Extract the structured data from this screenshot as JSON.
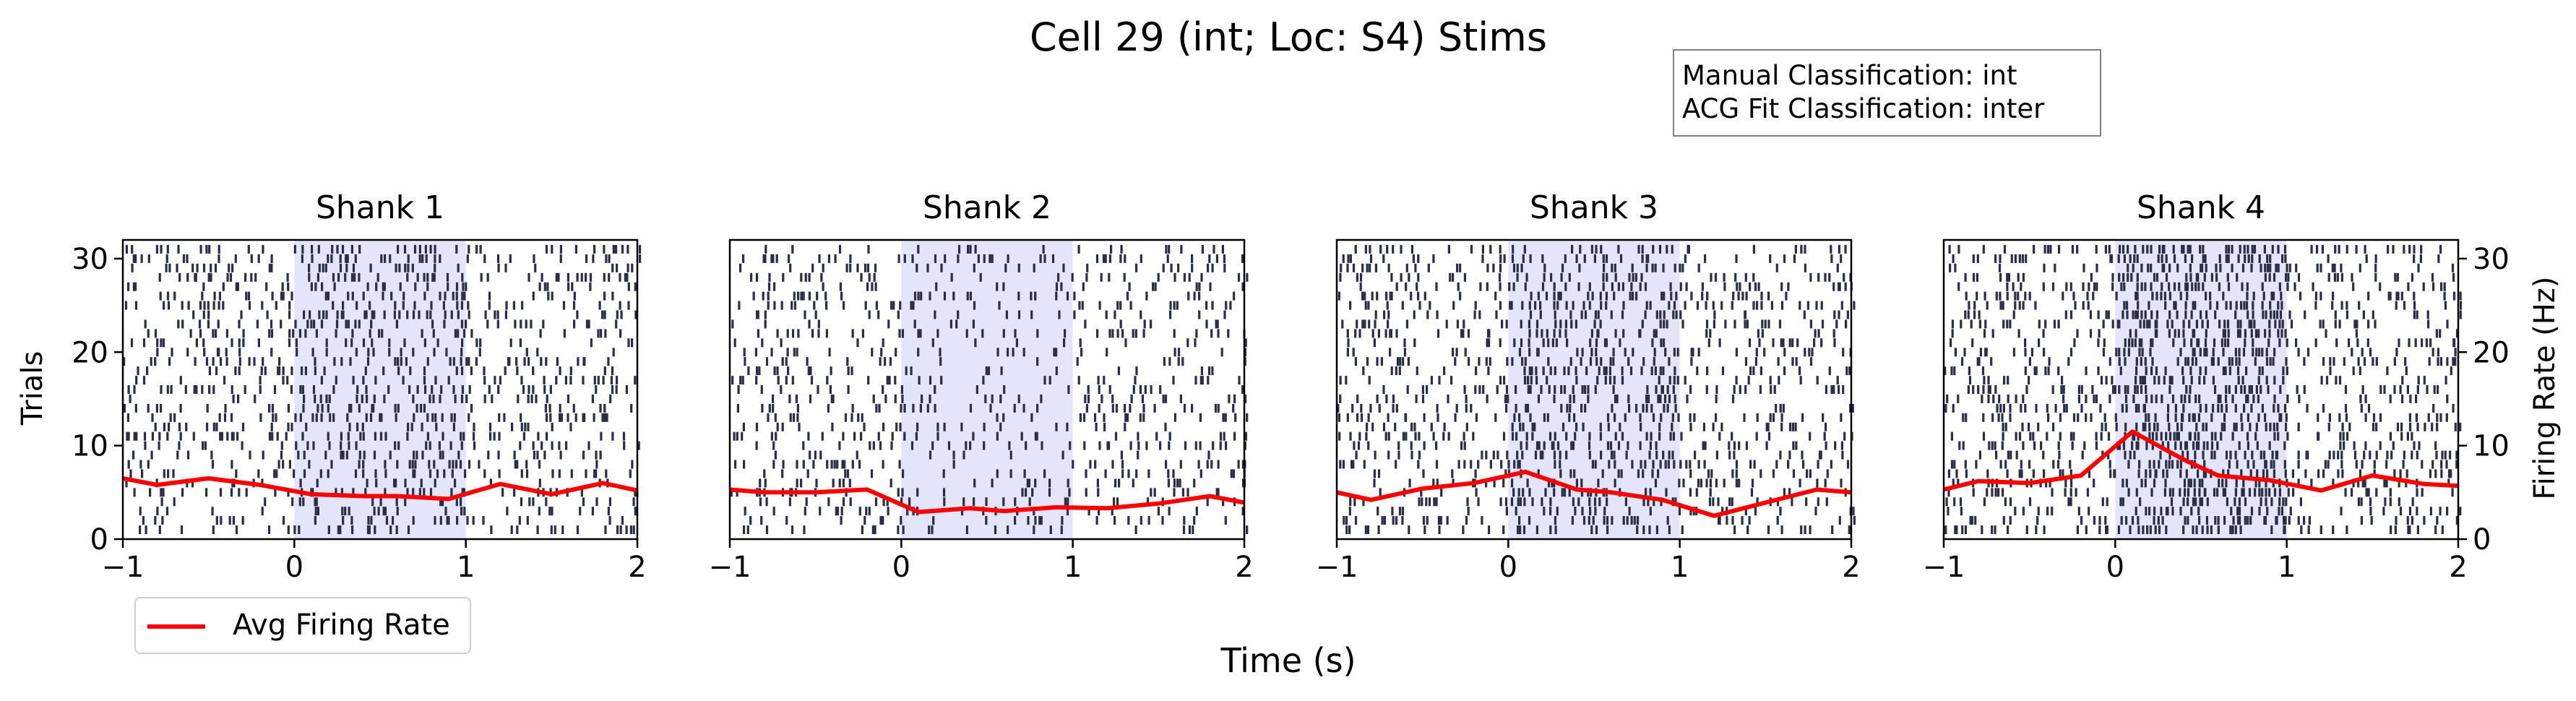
{
  "figure_title": "Cell 29 (int; Loc: S4) Stims",
  "classification_box": {
    "line1": "Manual Classification: int",
    "line2": "ACG Fit Classification: inter"
  },
  "legend": {
    "label": "Avg Firing Rate",
    "color": "#ff0000"
  },
  "colors": {
    "raster": "#2a2f45",
    "stim_shade": "#e4e4fb",
    "firing_rate": "#ff0000"
  },
  "chart_data": {
    "type": "line",
    "xlabel": "Time (s)",
    "left_ylabel": "Trials",
    "right_ylabel": "Firing Rate (Hz)",
    "xlim": [
      -1,
      2
    ],
    "xticks": [
      "−1",
      "0",
      "1",
      "2"
    ],
    "left_ylim": [
      0,
      32
    ],
    "left_yticks": [
      "0",
      "10",
      "20",
      "30"
    ],
    "right_ylim": [
      0,
      32
    ],
    "right_yticks": [
      "0",
      "10",
      "20",
      "30"
    ],
    "stim_window": [
      0,
      1
    ],
    "n_trials": 31,
    "x": [
      -1.0,
      -0.8,
      -0.5,
      -0.2,
      0.1,
      0.4,
      0.6,
      0.9,
      1.2,
      1.5,
      1.8,
      2.0
    ],
    "panels": [
      {
        "title": "Shank 1",
        "firing_rate": [
          6.5,
          5.8,
          6.5,
          5.8,
          4.8,
          4.6,
          4.6,
          4.3,
          5.9,
          4.8,
          6.0,
          5.2
        ],
        "raster_density": [
          0.22,
          0.3
        ]
      },
      {
        "title": "Shank 2",
        "firing_rate": [
          5.3,
          5.0,
          5.0,
          5.3,
          2.9,
          3.3,
          3.0,
          3.4,
          3.3,
          3.8,
          4.6,
          3.9
        ],
        "raster_density": [
          0.2,
          0.14
        ]
      },
      {
        "title": "Shank 3",
        "firing_rate": [
          5.0,
          4.2,
          5.4,
          6.0,
          7.2,
          5.3,
          5.0,
          4.2,
          2.5,
          3.9,
          5.3,
          5.0
        ],
        "raster_density": [
          0.22,
          0.36
        ]
      },
      {
        "title": "Shank 4",
        "firing_rate": [
          5.3,
          6.2,
          6.0,
          6.8,
          11.5,
          8.5,
          6.8,
          6.3,
          5.2,
          6.8,
          5.9,
          5.7
        ],
        "raster_density": [
          0.24,
          0.5
        ]
      }
    ]
  }
}
